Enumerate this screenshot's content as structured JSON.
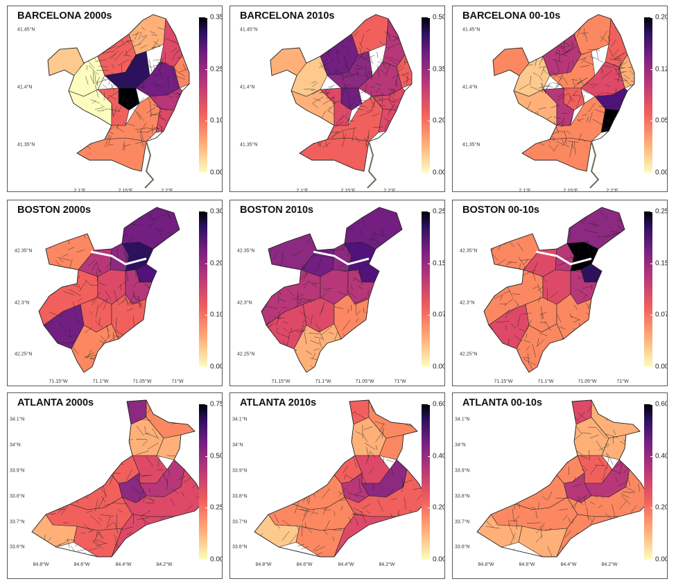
{
  "colors": {
    "scale": [
      "#fcfdbf",
      "#fec98d",
      "#feb078",
      "#fb8861",
      "#f1605d",
      "#de4968",
      "#b73779",
      "#8c2981",
      "#721f81",
      "#51127c",
      "#2c115f",
      "#000004"
    ],
    "outline": "#222222",
    "coast": "#6b6b5c"
  },
  "panels": [
    {
      "id": "barcelona-2000s",
      "title": "BARCELONA 2000s",
      "city": "barcelona",
      "scale_labels": [
        "0.35",
        "0.25",
        "0.10",
        "0.00"
      ],
      "lat_labels": [
        "41.45°N",
        "41.4°N",
        "41.35°N"
      ],
      "lon_labels": [
        "2.1°E",
        "2.15°E",
        "2.2°E"
      ],
      "shade": [
        1,
        0,
        0,
        4,
        2,
        5,
        3,
        10,
        11,
        8,
        6,
        5,
        4,
        3,
        3
      ]
    },
    {
      "id": "barcelona-2010s",
      "title": "BARCELONA 2010s",
      "city": "barcelona",
      "scale_labels": [
        "0.50",
        "0.35",
        "0.20",
        "0.00"
      ],
      "lat_labels": [
        "41.45°N",
        "41.4°N",
        "41.35°N"
      ],
      "lon_labels": [
        "2.1°E",
        "2.15°E",
        "2.2°E"
      ],
      "shade": [
        2,
        1,
        2,
        8,
        4,
        6,
        4,
        7,
        8,
        6,
        5,
        5,
        5,
        4,
        4
      ]
    },
    {
      "id": "barcelona-00-10s",
      "title": "BARCELONA 00-10s",
      "city": "barcelona",
      "scale_labels": [
        "0.20",
        "0.12",
        "0.05",
        "0.00"
      ],
      "lat_labels": [
        "41.45°N",
        "41.4°N",
        "41.35°N"
      ],
      "lon_labels": [
        "2.1°E",
        "2.15°E",
        "2.2°E"
      ],
      "shade": [
        3,
        1,
        2,
        6,
        3,
        4,
        2,
        3,
        4,
        5,
        9,
        11,
        6,
        3,
        3
      ]
    },
    {
      "id": "boston-2000s",
      "title": "BOSTON 2000s",
      "city": "boston",
      "scale_labels": [
        "0.30",
        "0.20",
        "0.10",
        "0.00"
      ],
      "lat_labels": [
        "42.35°N",
        "42.3°N",
        "42.25°N"
      ],
      "lon_labels": [
        "71.15°W",
        "71.1°W",
        "71.05°W",
        "71°W"
      ],
      "shade": [
        3,
        6,
        7,
        10,
        9,
        8,
        4,
        5,
        6,
        4,
        8,
        4,
        3
      ]
    },
    {
      "id": "boston-2010s",
      "title": "BOSTON 2010s",
      "city": "boston",
      "scale_labels": [
        "0.25",
        "0.15",
        "0.07",
        "0.00"
      ],
      "lat_labels": [
        "42.35°N",
        "42.3°N",
        "42.25°N"
      ],
      "lon_labels": [
        "71.15°W",
        "71.1°W",
        "71.05°W",
        "71°W"
      ],
      "shade": [
        7,
        8,
        7,
        9,
        9,
        8,
        6,
        6,
        6,
        5,
        5,
        3,
        2
      ]
    },
    {
      "id": "boston-00-10s",
      "title": "BOSTON 00-10s",
      "city": "boston",
      "scale_labels": [
        "0.25",
        "0.15",
        "0.07",
        "0.00"
      ],
      "lat_labels": [
        "42.35°N",
        "42.3°N",
        "42.25°N"
      ],
      "lon_labels": [
        "71.15°W",
        "71.1°W",
        "71.05°W",
        "71°W"
      ],
      "shade": [
        3,
        5,
        6,
        11,
        10,
        7,
        3,
        5,
        6,
        3,
        5,
        3,
        3
      ]
    },
    {
      "id": "atlanta-2000s",
      "title": "ATLANTA 2000s",
      "city": "atlanta",
      "scale_labels": [
        "0.75",
        "0.50",
        "0.25",
        "0.00"
      ],
      "lat_labels": [
        "34.1°N",
        "34°N",
        "33.9°N",
        "33.8°N",
        "33.7°N",
        "33.6°N"
      ],
      "lon_labels": [
        "84.8°W",
        "84.6°W",
        "84.4°W",
        "84.2°W"
      ],
      "shade": [
        7,
        3,
        2,
        2,
        4,
        5,
        7,
        6,
        4,
        5,
        4,
        2,
        4,
        5,
        3
      ]
    },
    {
      "id": "atlanta-2010s",
      "title": "ATLANTA 2010s",
      "city": "atlanta",
      "scale_labels": [
        "0.60",
        "0.40",
        "0.20",
        "0.00"
      ],
      "lat_labels": [
        "34.1°N",
        "34°N",
        "33.9°N",
        "33.8°N",
        "33.7°N",
        "33.6°N"
      ],
      "lon_labels": [
        "84.8°W",
        "84.6°W",
        "84.4°W",
        "84.2°W"
      ],
      "shade": [
        4,
        3,
        2,
        3,
        4,
        5,
        6,
        7,
        3,
        4,
        3,
        1,
        3,
        5,
        3
      ]
    },
    {
      "id": "atlanta-00-10s",
      "title": "ATLANTA 00-10s",
      "city": "atlanta",
      "scale_labels": [
        "0.60",
        "0.40",
        "0.20",
        "0.00"
      ],
      "lat_labels": [
        "34.1°N",
        "34°N",
        "33.9°N",
        "33.8°N",
        "33.7°N",
        "33.6°N"
      ],
      "lon_labels": [
        "84.8°W",
        "84.6°W",
        "84.4°W",
        "84.2°W"
      ],
      "shade": [
        5,
        2,
        2,
        2,
        3,
        4,
        6,
        6,
        3,
        3,
        3,
        2,
        2,
        3,
        3
      ]
    }
  ]
}
